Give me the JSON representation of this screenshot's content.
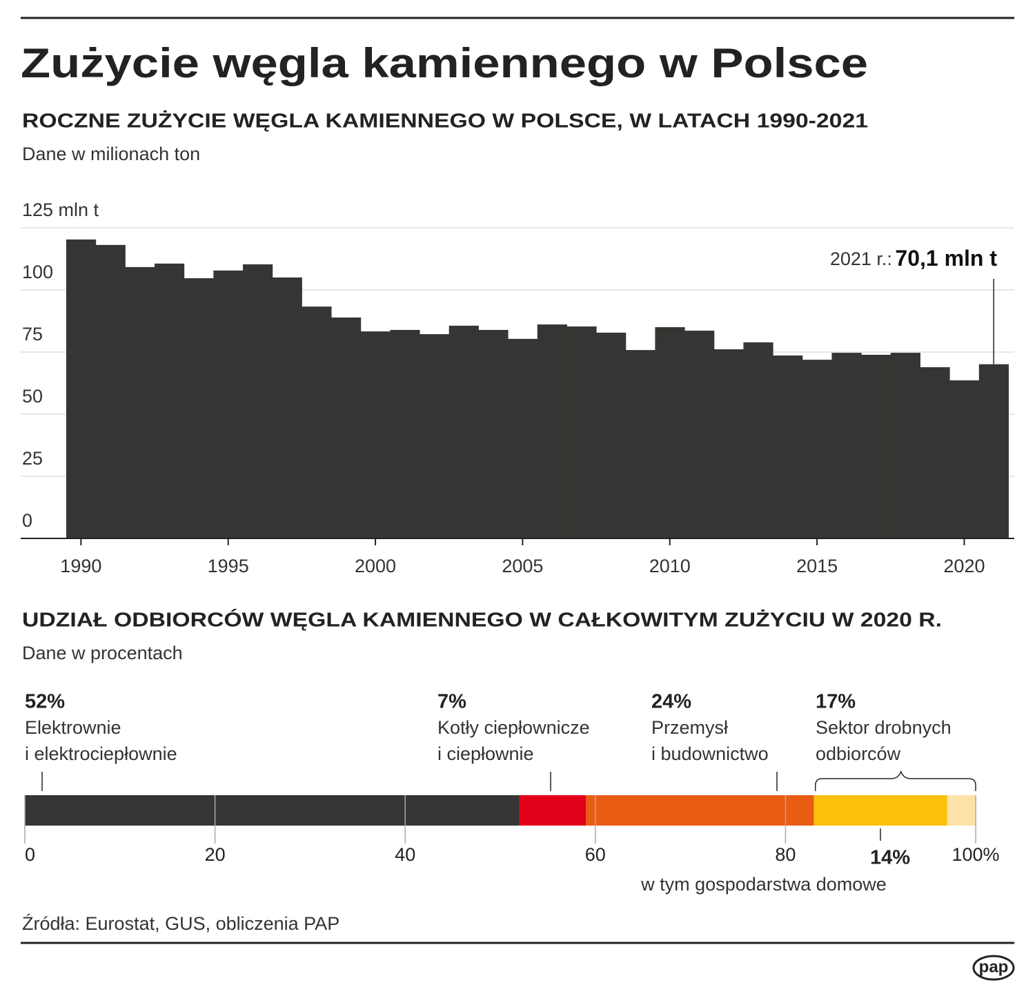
{
  "chart_data": [
    {
      "type": "histogram-years",
      "title": "Zużycie węgla kamiennego w Polsce",
      "subtitle": "ROCZNE ZUŻYCIE WĘGLA KAMIENNEGO W POLSCE, W LATACH 1990-2021",
      "note": "Dane w milionach ton",
      "x": [
        1990,
        1991,
        1992,
        1993,
        1994,
        1995,
        1996,
        1997,
        1998,
        1999,
        2000,
        2001,
        2002,
        2003,
        2004,
        2005,
        2006,
        2007,
        2008,
        2009,
        2010,
        2011,
        2012,
        2013,
        2014,
        2015,
        2016,
        2017,
        2018,
        2019,
        2020,
        2021
      ],
      "values": [
        120.3,
        118.1,
        109.2,
        110.6,
        104.7,
        107.8,
        110.3,
        105.0,
        93.3,
        88.9,
        83.3,
        83.9,
        82.2,
        85.6,
        83.9,
        80.3,
        86.1,
        85.3,
        82.8,
        75.8,
        85.0,
        83.6,
        76.1,
        78.9,
        73.6,
        71.9,
        74.7,
        73.9,
        74.7,
        68.9,
        63.6,
        70.1
      ],
      "color": "#353533",
      "xlim": [
        1988,
        2021.7
      ],
      "xticks": [
        1990,
        1995,
        2000,
        2005,
        2010,
        2015,
        2020
      ],
      "ylim": [
        0,
        125
      ],
      "yticks": [
        0,
        25,
        50,
        75,
        100,
        {
          "value": 125,
          "label": "125 mln t"
        }
      ],
      "grid": true,
      "annotation": {
        "text": "2021 r.:",
        "label": "70,1 mln t",
        "index": 31
      }
    },
    {
      "type": "stacked-hbar",
      "subtitle": "UDZIAŁ ODBIORCÓW WĘGLA KAMIENNEGO W CAŁKOWITYM ZUŻYCIU W 2020 R.",
      "note": "Dane w procentach",
      "categories": [
        [
          "Elektrownie",
          "i elektrociepłownie"
        ],
        [
          "Kotły ciepłownicze",
          "i ciepłownie"
        ],
        [
          "Przemysł",
          "i budownictwo"
        ],
        [
          "Sektor drobnych",
          "odbiorców"
        ]
      ],
      "values": [
        52,
        7,
        24,
        17
      ],
      "value_labels": [
        "52%",
        "7%",
        "24%",
        "17%"
      ],
      "colors": [
        "#353533",
        "#e3001b",
        "#e85c14",
        "#fde3a7"
      ],
      "households": {
        "name": "w tym gospodarstwa domowe",
        "value": 14,
        "value_label": "14%",
        "color": "#fbc00a"
      },
      "xlim": [
        0,
        100
      ],
      "xticks": [
        0,
        20,
        40,
        60,
        80,
        {
          "value": 100,
          "label": "100%"
        }
      ]
    }
  ],
  "source": "Źródła: Eurostat, GUS, obliczenia PAP",
  "logo": "pap"
}
